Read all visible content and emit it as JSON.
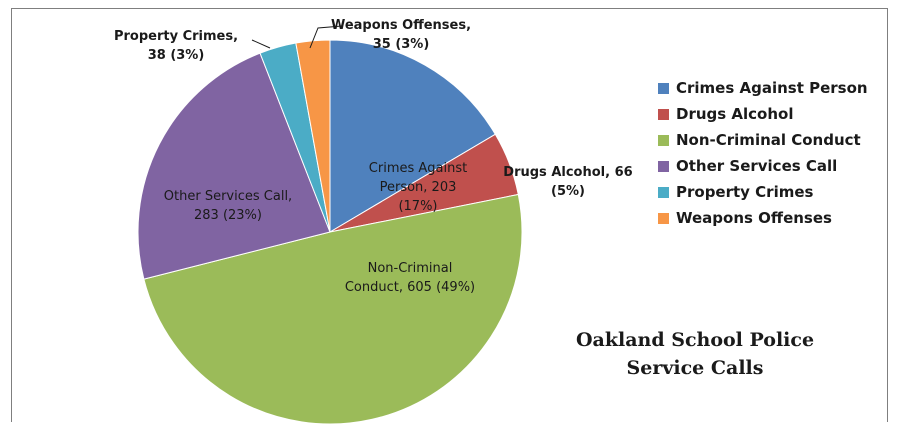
{
  "chart_data": {
    "type": "pie",
    "title_lines": [
      "Oakland School Police",
      "Service Calls"
    ],
    "slices": [
      {
        "name": "Crimes Against Person",
        "value": 203,
        "pct": "17%",
        "color": "#4f81bd",
        "label_lines": [
          "Crimes Against",
          "Person, 203",
          "(17%)"
        ]
      },
      {
        "name": "Drugs Alcohol",
        "value": 66,
        "pct": "5%",
        "color": "#c0504d",
        "label_lines": [
          "Drugs Alcohol, 66",
          "(5%)"
        ]
      },
      {
        "name": "Non-Criminal Conduct",
        "value": 605,
        "pct": "49%",
        "color": "#9bbb59",
        "label_lines": [
          "Non-Criminal",
          "Conduct, 605 (49%)"
        ]
      },
      {
        "name": "Other Services Call",
        "value": 283,
        "pct": "23%",
        "color": "#8064a2",
        "label_lines": [
          "Other Services Call,",
          "283 (23%)"
        ]
      },
      {
        "name": "Property Crimes",
        "value": 38,
        "pct": "3%",
        "color": "#4bacc6",
        "label_lines": [
          "Property Crimes,",
          "38 (3%)"
        ]
      },
      {
        "name": "Weapons Offenses",
        "value": 35,
        "pct": "3%",
        "color": "#f79646",
        "label_lines": [
          "Weapons Offenses,",
          "35 (3%)"
        ]
      }
    ],
    "legend_position": "right"
  }
}
